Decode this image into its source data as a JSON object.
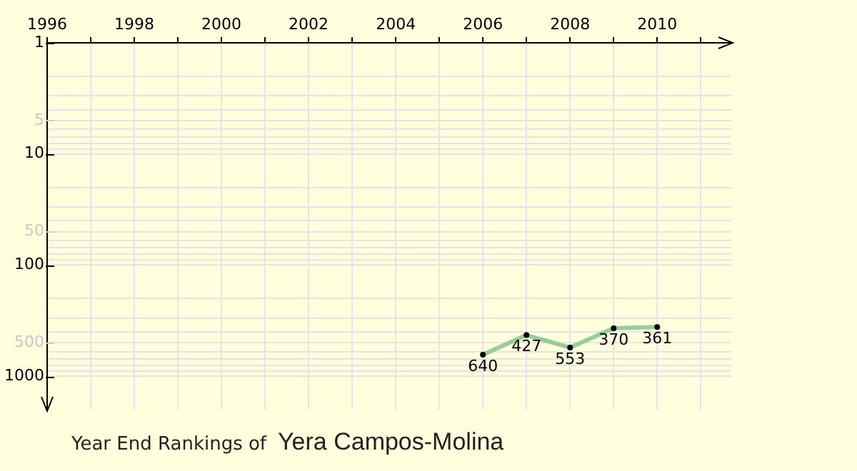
{
  "chart_data": {
    "type": "line",
    "title": "Year End Rankings of",
    "subtitle": "Yera Campos-Molina",
    "x": [
      2006,
      2007,
      2008,
      2009,
      2010
    ],
    "series": [
      {
        "color": "#99cc99",
        "values": [
          640,
          427,
          553,
          370,
          361
        ]
      }
    ],
    "xlim": [
      1996,
      2011.7
    ],
    "xticks": [
      1996,
      {
        "value": 1997,
        "label": null
      },
      1998,
      {
        "value": 1999,
        "label": null
      },
      2000,
      {
        "value": 2001,
        "label": null
      },
      2002,
      {
        "value": 2003,
        "label": null
      },
      2004,
      {
        "value": 2005,
        "label": null
      },
      2006,
      {
        "value": 2007,
        "label": null
      },
      2008,
      {
        "value": 2009,
        "label": null
      },
      2010,
      {
        "value": 2011,
        "label": null
      }
    ],
    "ylim": [
      2000,
      1
    ],
    "yticks": [
      1,
      {
        "value": 2,
        "label": null
      },
      {
        "value": 3,
        "label": null
      },
      {
        "value": 4,
        "label": null
      },
      5,
      {
        "value": 6,
        "label": null
      },
      {
        "value": 7,
        "label": null
      },
      {
        "value": 8,
        "label": null
      },
      {
        "value": 9,
        "label": null
      },
      10,
      {
        "value": 20,
        "label": null
      },
      {
        "value": 30,
        "label": null
      },
      {
        "value": 40,
        "label": null
      },
      50,
      {
        "value": 60,
        "label": null
      },
      {
        "value": 70,
        "label": null
      },
      {
        "value": 80,
        "label": null
      },
      {
        "value": 90,
        "label": null
      },
      100,
      {
        "value": 200,
        "label": null
      },
      {
        "value": 300,
        "label": null
      },
      {
        "value": 400,
        "label": null
      },
      500,
      {
        "value": 600,
        "label": null
      },
      {
        "value": 700,
        "label": null
      },
      {
        "value": 800,
        "label": null
      },
      {
        "value": 900,
        "label": null
      },
      1000
    ],
    "log": true,
    "grid": true,
    "data_labels": true,
    "marker": "circle",
    "line_style": "solid"
  }
}
